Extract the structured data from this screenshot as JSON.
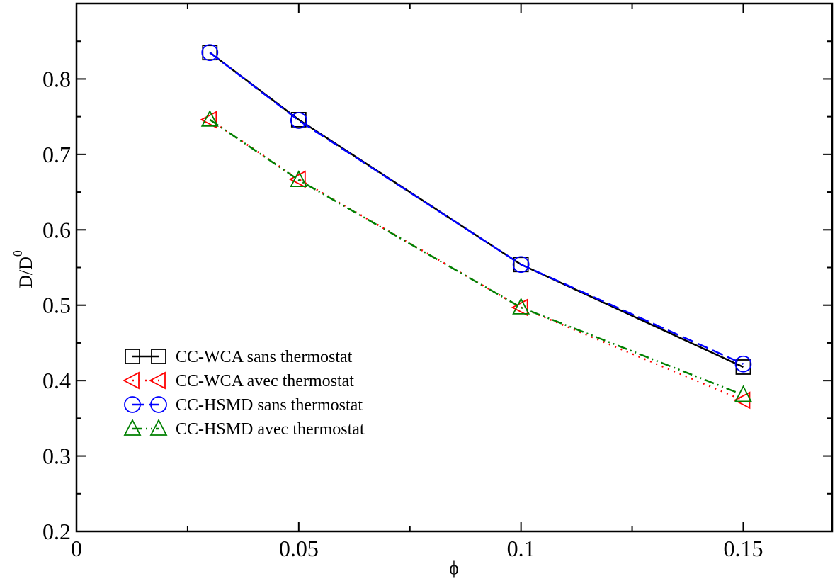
{
  "chart_data": {
    "type": "line",
    "xlabel": "ϕ",
    "ylabel": "D/D",
    "ylabel_sup": "0",
    "xlim": [
      0,
      0.17
    ],
    "ylim": [
      0.2,
      0.9
    ],
    "x_ticks": [
      0,
      0.05,
      0.1,
      0.15
    ],
    "x_tick_labels": [
      "0",
      "0.05",
      "0.1",
      "0.15"
    ],
    "x_minor_step": 0.025,
    "y_ticks": [
      0.2,
      0.3,
      0.4,
      0.5,
      0.6,
      0.7,
      0.8
    ],
    "y_tick_labels": [
      "0.2",
      "0.3",
      "0.4",
      "0.5",
      "0.6",
      "0.7",
      "0.8"
    ],
    "y_minor_step": 0.05,
    "grid": false,
    "legend_position": "lower-left",
    "series": [
      {
        "name": "CC-WCA sans thermostat",
        "color": "#000000",
        "dash": "solid",
        "marker": "square",
        "x": [
          0.03,
          0.05,
          0.1,
          0.15
        ],
        "y": [
          0.835,
          0.746,
          0.554,
          0.418
        ]
      },
      {
        "name": "CC-WCA avec thermostat",
        "color": "#ff0000",
        "dash": "dot",
        "marker": "triangle-left",
        "x": [
          0.03,
          0.05,
          0.1,
          0.15
        ],
        "y": [
          0.746,
          0.667,
          0.497,
          0.374
        ]
      },
      {
        "name": "CC-HSMD sans thermostat",
        "color": "#0000ff",
        "dash": "dash",
        "marker": "circle",
        "x": [
          0.03,
          0.05,
          0.1,
          0.15
        ],
        "y": [
          0.835,
          0.745,
          0.554,
          0.422
        ]
      },
      {
        "name": "CC-HSMD avec thermostat",
        "color": "#008000",
        "dash": "dashdot",
        "marker": "triangle-up",
        "x": [
          0.03,
          0.05,
          0.1,
          0.15
        ],
        "y": [
          0.746,
          0.666,
          0.497,
          0.381
        ]
      }
    ]
  }
}
